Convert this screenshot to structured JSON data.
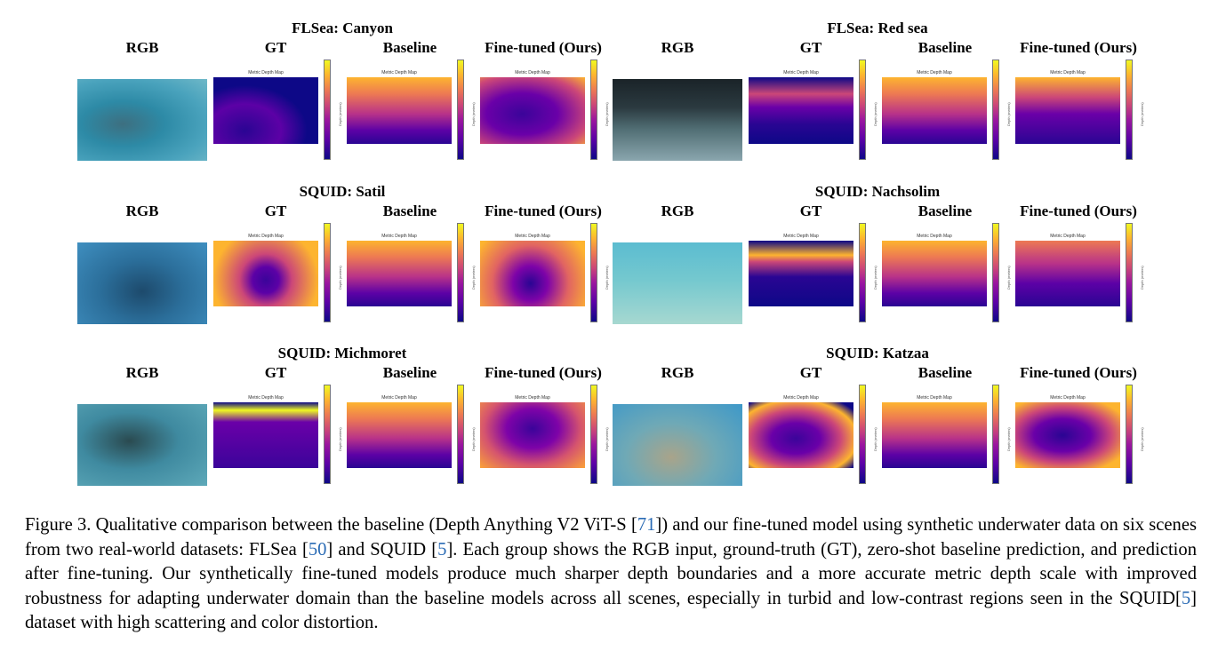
{
  "figure": {
    "column_headers": [
      "RGB",
      "GT",
      "Baseline",
      "Fine-tuned (Ours)"
    ],
    "map_title": "Metric Depth Map",
    "colorbar_label": "Depth (meters)",
    "scenes": [
      {
        "title": "FLSea: Canyon"
      },
      {
        "title": "FLSea: Red sea"
      },
      {
        "title": "SQUID: Satil"
      },
      {
        "title": "SQUID: Nachsolim"
      },
      {
        "title": "SQUID: Michmoret"
      },
      {
        "title": "SQUID: Katzaa"
      }
    ]
  },
  "caption": {
    "p1": "Figure 3.  Qualitative comparison between the baseline (Depth Anything V2 ViT-S [",
    "r1": "71",
    "p2": "]) and our fine-tuned model using synthetic underwater data on six scenes from two real-world datasets: FLSea [",
    "r2": "50",
    "p3": "] and SQUID [",
    "r3": "5",
    "p4": "].  Each group shows the RGB input, ground-truth (GT), zero-shot baseline prediction, and prediction after fine-tuning.  Our synthetically fine-tuned models produce much sharper depth boundaries and a more accurate metric depth scale with improved robustness for adapting underwater domain than the baseline models across all scenes, especially in turbid and low-contrast regions seen in the SQUID[",
    "r4": "5",
    "p5": "] dataset with high scattering and color distortion."
  },
  "colors": {
    "ref_link": "#2a6bb5",
    "depth_dark": "#0d0887",
    "depth_mid": "#9c179e",
    "depth_light": "#f0f921",
    "water_blue": "#2f7fa8",
    "water_teal": "#6fc0c8"
  }
}
